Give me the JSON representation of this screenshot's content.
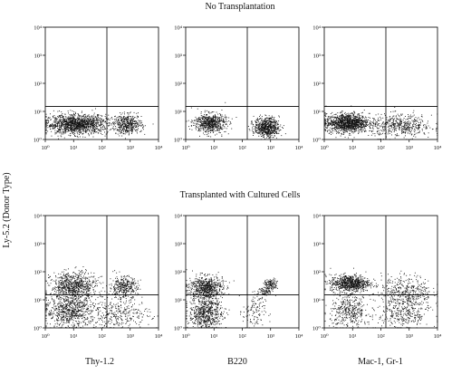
{
  "figure": {
    "row_titles": [
      "No Transplantation",
      "Transplanted with Cultured Cells"
    ],
    "ylabel": "Ly-5.2 (Donor Type)",
    "column_labels": [
      "Thy-1.2",
      "B220",
      "Mac-1, Gr-1"
    ],
    "tick_labels": [
      "10⁰",
      "10¹",
      "10²",
      "10³",
      "10⁴"
    ],
    "dot_color": "#111111"
  },
  "chart_data": [
    {
      "type": "scatter",
      "row": 0,
      "col": 0,
      "xlabel": "Thy-1.2",
      "scale": "log",
      "xlim": [
        1,
        10000
      ],
      "ylim": [
        1,
        10000
      ],
      "gates": {
        "x": 150,
        "y": 15
      },
      "clusters": [
        {
          "cx": 1.1,
          "cy": 0.55,
          "sx": 0.55,
          "sy": 0.17,
          "n": 1400
        },
        {
          "cx": 2.9,
          "cy": 0.55,
          "sx": 0.25,
          "sy": 0.17,
          "n": 450
        }
      ]
    },
    {
      "type": "scatter",
      "row": 0,
      "col": 1,
      "xlabel": "B220",
      "scale": "log",
      "xlim": [
        1,
        10000
      ],
      "ylim": [
        1,
        10000
      ],
      "gates": {
        "x": 150,
        "y": 15
      },
      "clusters": [
        {
          "cx": 0.85,
          "cy": 0.6,
          "sx": 0.28,
          "sy": 0.17,
          "n": 650
        },
        {
          "cx": 2.85,
          "cy": 0.45,
          "sx": 0.22,
          "sy": 0.17,
          "n": 650
        }
      ]
    },
    {
      "type": "scatter",
      "row": 0,
      "col": 2,
      "xlabel": "Mac-1, Gr-1",
      "scale": "log",
      "xlim": [
        1,
        10000
      ],
      "ylim": [
        1,
        10000
      ],
      "gates": {
        "x": 150,
        "y": 15
      },
      "clusters": [
        {
          "cx": 0.8,
          "cy": 0.6,
          "sx": 0.38,
          "sy": 0.17,
          "n": 1200
        },
        {
          "cx": 2.7,
          "cy": 0.5,
          "sx": 0.55,
          "sy": 0.2,
          "n": 500
        }
      ]
    },
    {
      "type": "scatter",
      "row": 1,
      "col": 0,
      "xlabel": "Thy-1.2",
      "scale": "log",
      "xlim": [
        1,
        10000
      ],
      "ylim": [
        1,
        10000
      ],
      "gates": {
        "x": 150,
        "y": 15
      },
      "clusters": [
        {
          "cx": 1.0,
          "cy": 1.5,
          "sx": 0.4,
          "sy": 0.25,
          "n": 750
        },
        {
          "cx": 2.75,
          "cy": 1.45,
          "sx": 0.25,
          "sy": 0.2,
          "n": 350
        },
        {
          "cx": 0.9,
          "cy": 0.6,
          "sx": 0.45,
          "sy": 0.3,
          "n": 700
        },
        {
          "cx": 2.6,
          "cy": 0.5,
          "sx": 0.55,
          "sy": 0.25,
          "n": 300
        }
      ]
    },
    {
      "type": "scatter",
      "row": 1,
      "col": 1,
      "xlabel": "B220",
      "scale": "log",
      "xlim": [
        1,
        10000
      ],
      "ylim": [
        1,
        10000
      ],
      "gates": {
        "x": 150,
        "y": 15
      },
      "clusters": [
        {
          "cx": 0.7,
          "cy": 1.45,
          "sx": 0.3,
          "sy": 0.2,
          "n": 650
        },
        {
          "cx": 0.7,
          "cy": 0.55,
          "sx": 0.3,
          "sy": 0.3,
          "n": 650
        },
        {
          "cx": 3.0,
          "cy": 1.55,
          "sx": 0.12,
          "sy": 0.1,
          "n": 120
        },
        {
          "cx": 2.8,
          "cy": 1.3,
          "sx": 0.12,
          "sy": 0.1,
          "n": 70
        },
        {
          "cx": 2.4,
          "cy": 0.6,
          "sx": 0.2,
          "sy": 0.35,
          "n": 120
        }
      ]
    },
    {
      "type": "scatter",
      "row": 1,
      "col": 2,
      "xlabel": "Mac-1, Gr-1",
      "scale": "log",
      "xlim": [
        1,
        10000
      ],
      "ylim": [
        1,
        10000
      ],
      "gates": {
        "x": 150,
        "y": 15
      },
      "clusters": [
        {
          "cx": 0.9,
          "cy": 1.6,
          "sx": 0.35,
          "sy": 0.15,
          "n": 750
        },
        {
          "cx": 2.9,
          "cy": 1.3,
          "sx": 0.45,
          "sy": 0.3,
          "n": 400
        },
        {
          "cx": 0.9,
          "cy": 0.6,
          "sx": 0.35,
          "sy": 0.3,
          "n": 400
        },
        {
          "cx": 2.8,
          "cy": 0.5,
          "sx": 0.45,
          "sy": 0.3,
          "n": 300
        }
      ]
    }
  ]
}
